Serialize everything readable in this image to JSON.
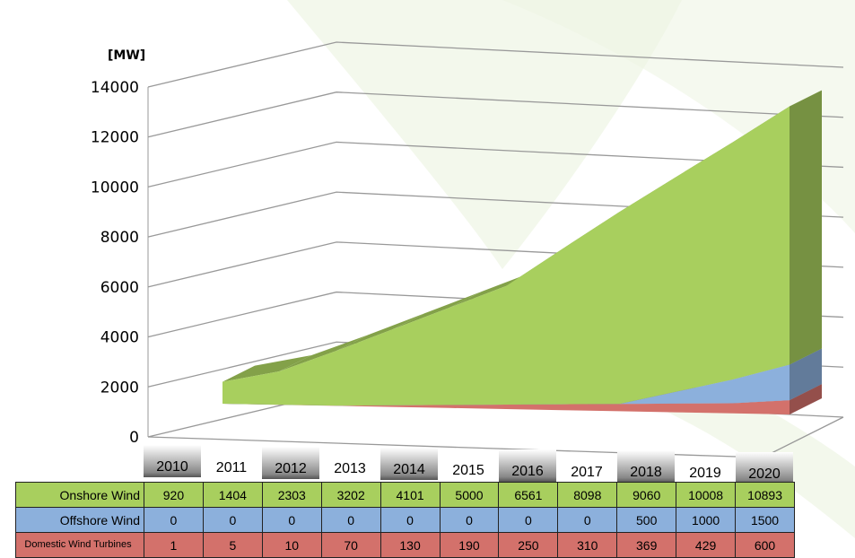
{
  "chart_data": {
    "type": "area3d",
    "y_axis_label": "[MW]",
    "categories": [
      "2010",
      "2011",
      "2012",
      "2013",
      "2014",
      "2015",
      "2016",
      "2017",
      "2018",
      "2019",
      "2020"
    ],
    "series": [
      {
        "name": "Onshore Wind",
        "color": "#a8cf5e",
        "values": [
          920,
          1404,
          2303,
          3202,
          4101,
          5000,
          6561,
          8098,
          9060,
          10008,
          10893
        ]
      },
      {
        "name": "Offshore Wind",
        "color": "#8cb0dc",
        "values": [
          0,
          0,
          0,
          0,
          0,
          0,
          0,
          0,
          500,
          1000,
          1500
        ]
      },
      {
        "name": "Domestic Wind Turbines",
        "color": "#d3716b",
        "values": [
          1,
          5,
          10,
          70,
          130,
          190,
          250,
          310,
          369,
          429,
          600
        ]
      }
    ],
    "stacked": true,
    "ylim": [
      0,
      14000
    ],
    "yticks": [
      0,
      2000,
      4000,
      6000,
      8000,
      10000,
      12000,
      14000
    ],
    "grid": true
  }
}
